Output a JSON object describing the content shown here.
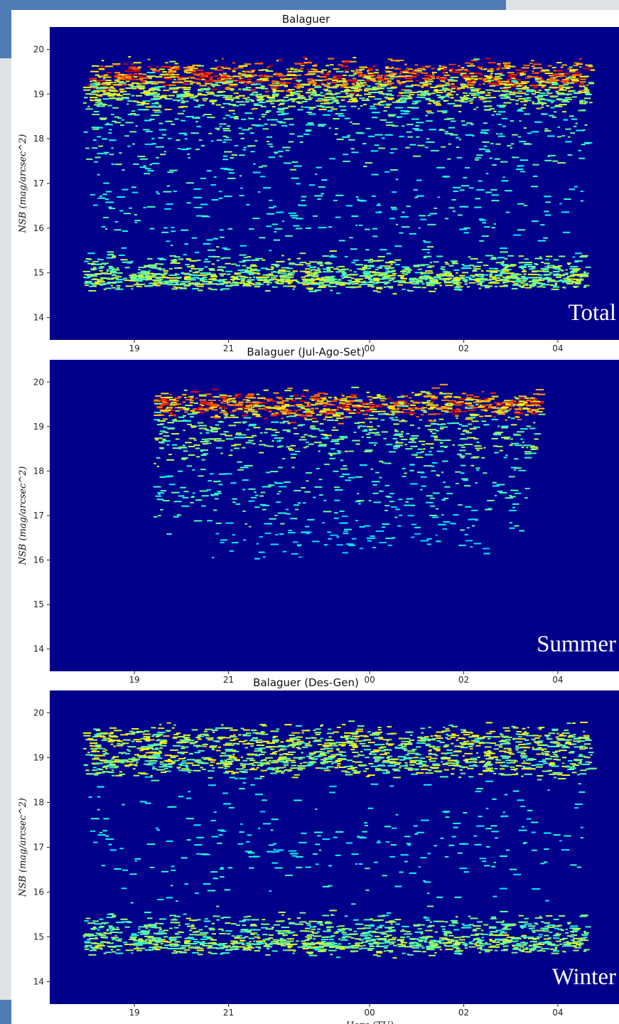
{
  "chart_data": [
    {
      "type": "heatmap",
      "title": "Balaguer",
      "annotation": "Total",
      "ylabel": "NSB (mag/arcsec^2)",
      "xlabel": "",
      "x_ticks": [
        "19",
        "21",
        "00",
        "02",
        "04"
      ],
      "y_ticks": [
        "14",
        "15",
        "16",
        "17",
        "18",
        "19",
        "20"
      ],
      "xlim_hours": [
        17.2,
        29.3
      ],
      "ylim": [
        13.5,
        20.5
      ],
      "colormap": "jet",
      "background": "#00008b",
      "bands": [
        {
          "t0": 18.0,
          "t1": 28.7,
          "y": 19.4,
          "spread": 0.35,
          "density": 1.0
        },
        {
          "t0": 17.9,
          "t1": 28.7,
          "y": 19.0,
          "spread": 0.35,
          "density": 0.75
        },
        {
          "t0": 17.9,
          "t1": 28.6,
          "y": 18.3,
          "spread": 0.9,
          "density": 0.45
        },
        {
          "t0": 17.9,
          "t1": 28.6,
          "y": 16.6,
          "spread": 1.4,
          "density": 0.32
        },
        {
          "t0": 17.9,
          "t1": 28.6,
          "y": 15.1,
          "spread": 0.35,
          "density": 0.6
        },
        {
          "t0": 17.9,
          "t1": 28.6,
          "y": 14.85,
          "spread": 0.22,
          "density": 0.7
        }
      ]
    },
    {
      "type": "heatmap",
      "title": "Balaguer (Jul-Ago-Set)",
      "annotation": "Summer",
      "ylabel": "NSB (mag/arcsec^2)",
      "xlabel": "",
      "x_ticks": [
        "19",
        "21",
        "00",
        "02",
        "04"
      ],
      "y_ticks": [
        "14",
        "15",
        "16",
        "17",
        "18",
        "19",
        "20"
      ],
      "xlim_hours": [
        17.2,
        29.3
      ],
      "ylim": [
        13.5,
        20.5
      ],
      "colormap": "jet",
      "background": "#00008b",
      "bands": [
        {
          "t0": 19.4,
          "t1": 27.6,
          "y": 19.5,
          "spread": 0.3,
          "density": 1.0
        },
        {
          "t0": 19.4,
          "t1": 27.5,
          "y": 18.8,
          "spread": 0.6,
          "density": 0.6
        },
        {
          "t0": 19.4,
          "t1": 27.3,
          "y": 17.6,
          "spread": 1.0,
          "density": 0.38
        },
        {
          "t0": 20.5,
          "t1": 26.5,
          "y": 16.6,
          "spread": 0.5,
          "density": 0.15
        }
      ]
    },
    {
      "type": "heatmap",
      "title": "Balaguer (Des-Gen)",
      "annotation": "Winter",
      "ylabel": "NSB (mag/arcsec^2)",
      "xlabel": "Hora (TU)",
      "x_ticks": [
        "19",
        "21",
        "00",
        "02",
        "04"
      ],
      "y_ticks": [
        "14",
        "15",
        "16",
        "17",
        "18",
        "19",
        "20"
      ],
      "xlim_hours": [
        17.2,
        29.3
      ],
      "ylim": [
        13.5,
        20.5
      ],
      "colormap": "jet",
      "background": "#00008b",
      "bands": [
        {
          "t0": 17.9,
          "t1": 28.7,
          "y": 19.4,
          "spread": 0.35,
          "density": 0.75
        },
        {
          "t0": 17.9,
          "t1": 28.7,
          "y": 18.9,
          "spread": 0.3,
          "density": 0.7
        },
        {
          "t0": 17.9,
          "t1": 28.6,
          "y": 17.2,
          "spread": 1.5,
          "density": 0.28
        },
        {
          "t0": 17.9,
          "t1": 28.6,
          "y": 15.2,
          "spread": 0.35,
          "density": 0.55
        },
        {
          "t0": 17.9,
          "t1": 28.6,
          "y": 14.85,
          "spread": 0.22,
          "density": 0.65
        }
      ]
    }
  ]
}
